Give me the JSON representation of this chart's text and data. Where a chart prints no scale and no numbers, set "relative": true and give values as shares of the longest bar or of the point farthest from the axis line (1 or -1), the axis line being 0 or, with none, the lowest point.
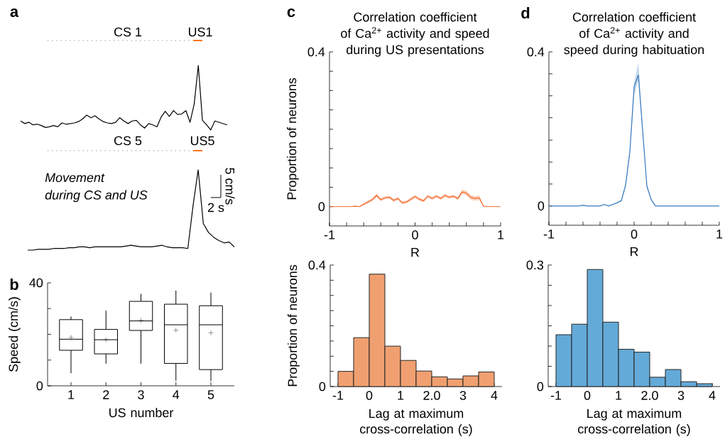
{
  "chart_data": [
    {
      "type": "line",
      "relative": true,
      "categories": [
        null,
        null,
        null,
        null,
        null,
        null,
        null,
        null,
        null,
        null,
        null,
        null,
        null,
        null,
        null,
        null,
        null,
        null,
        null,
        null,
        null,
        null,
        null,
        null,
        null,
        null,
        null,
        null,
        null,
        null,
        null,
        null,
        null,
        null,
        null,
        null,
        null,
        null,
        null,
        null,
        null,
        null,
        null,
        null,
        null,
        null,
        null,
        null,
        null,
        null,
        null
      ],
      "series": [
        {
          "color": "#000000",
          "values": [
            0.14,
            0.1,
            0.12,
            0.08,
            0.09,
            0.07,
            0.04,
            0.05,
            0.07,
            0.05,
            0.11,
            0.09,
            0.1,
            0.11,
            0.13,
            0.17,
            0.23,
            0.19,
            0.22,
            0.17,
            0.13,
            0.11,
            0.1,
            0.12,
            0.19,
            0.14,
            0.1,
            0.14,
            0.15,
            0.08,
            0.03,
            0.1,
            0.08,
            0.05,
            0.2,
            0.29,
            0.21,
            0.3,
            0.24,
            0.25,
            0.3,
            0.12,
            0.4,
            1,
            0.15,
            0.08,
            0,
            0.14,
            0.12,
            0.1,
            0.08
          ]
        }
      ],
      "annotations": [
        "a",
        "CS 1",
        "US1"
      ]
    },
    {
      "type": "line",
      "relative": true,
      "categories": [
        null,
        null,
        null,
        null,
        null,
        null,
        null,
        null,
        null,
        null,
        null,
        null,
        null,
        null,
        null,
        null,
        null,
        null,
        null,
        null,
        null,
        null,
        null,
        null,
        null,
        null,
        null,
        null,
        null,
        null,
        null,
        null,
        null,
        null,
        null,
        null,
        null,
        null,
        null,
        null,
        null
      ],
      "series": [
        {
          "color": "#000000",
          "values": [
            0,
            0,
            0.01,
            0.01,
            0.01,
            0.02,
            0.02,
            0.02,
            0.03,
            0.03,
            0.04,
            0.04,
            0.03,
            0.04,
            0.04,
            0.04,
            0.04,
            0.04,
            0.04,
            0.05,
            0.06,
            0.05,
            0.04,
            0.04,
            0.04,
            0.05,
            0.06,
            0.04,
            0.03,
            0.03,
            0.03,
            0.02,
            0.55,
            1,
            0.33,
            0.22,
            0.16,
            0.12,
            0.09,
            0.1,
            0.04
          ]
        }
      ],
      "annotations": [
        "CS 5",
        "US5",
        "Movement",
        "during CS and US",
        "5 cm/s",
        "2 s"
      ]
    },
    {
      "type": "box",
      "categories": [
        "1",
        "2",
        "3",
        "4",
        "5"
      ],
      "color": "#000000",
      "boxes": [
        {
          "low": 4.9,
          "q1": 13.8,
          "median": 18.1,
          "q3": 25.7,
          "high": 26.9,
          "mean": 18.8
        },
        {
          "low": 8.6,
          "q1": 12.4,
          "median": 17.9,
          "q3": 21.9,
          "high": 29.2,
          "mean": 17.9
        },
        {
          "low": 8.6,
          "q1": 21.5,
          "median": 25.2,
          "q3": 32.8,
          "high": 35.7,
          "mean": 25.4
        },
        {
          "low": 2.0,
          "q1": 8.7,
          "median": 23.7,
          "q3": 31.7,
          "high": 37.0,
          "mean": 21.6
        },
        {
          "low": 1.8,
          "q1": 6.3,
          "median": 23.7,
          "q3": 31.1,
          "high": 36.2,
          "mean": 20.6
        }
      ],
      "xlabel": "US number",
      "ylabel": "Speed (cm/s)",
      "ylim": [
        0,
        40
      ],
      "yticks": [
        0,
        {
          "value": 10,
          "label": null
        },
        {
          "value": 20,
          "label": null
        },
        {
          "value": 30,
          "label": null
        },
        40
      ],
      "annotations": [
        "b"
      ]
    },
    {
      "type": "line",
      "title": "Correlation coefficient",
      "subtitle": "of Ca$^{2+}$ activity and speed during US presentations",
      "xlabel": "R",
      "ylabel": "Proportion of neurons",
      "x": [
        -1,
        -0.95,
        -0.9,
        -0.85,
        -0.8,
        -0.75,
        -0.7,
        -0.65,
        -0.6,
        -0.55,
        -0.5,
        -0.45,
        -0.4,
        -0.35,
        -0.3,
        -0.25,
        -0.2,
        -0.15,
        -0.1,
        -0.05,
        0,
        0.05,
        0.1,
        0.15,
        0.2,
        0.25,
        0.3,
        0.35,
        0.4,
        0.45,
        0.5,
        0.55,
        0.6,
        0.65,
        0.7,
        0.75,
        0.8,
        0.85,
        0.9,
        0.95,
        1
      ],
      "xlim": [
        -1,
        1
      ],
      "xticks": [
        -1,
        {
          "value": -0.8,
          "label": null
        },
        {
          "value": -0.6,
          "label": null
        },
        {
          "value": -0.4,
          "label": null
        },
        {
          "value": -0.2,
          "label": null
        },
        0,
        {
          "value": 0.2,
          "label": null
        },
        {
          "value": 0.4,
          "label": null
        },
        {
          "value": 0.6,
          "label": null
        },
        {
          "value": 0.8,
          "label": null
        },
        1
      ],
      "ylim": [
        -0.05,
        0.4
      ],
      "yticks": [
        0,
        {
          "value": 0.05,
          "label": null
        },
        {
          "value": 0.1,
          "label": null
        },
        {
          "value": 0.15,
          "label": null
        },
        {
          "value": 0.2,
          "label": null
        },
        {
          "value": 0.25,
          "label": null
        },
        {
          "value": 0.3,
          "label": null
        },
        {
          "value": 0.35,
          "label": null
        },
        0.4
      ],
      "series": [
        {
          "color": "#f26a2a",
          "values": [
            0,
            0,
            0,
            0,
            0,
            0,
            0.001,
            0,
            0.006,
            0.012,
            0.018,
            0.029,
            0.018,
            0.023,
            0.024,
            0.016,
            0.021,
            0.01,
            0.012,
            0.019,
            0.026,
            0.019,
            0.015,
            0.027,
            0.021,
            0.027,
            0.021,
            0.029,
            0.024,
            0.027,
            0.021,
            0.038,
            0.035,
            0.024,
            0.021,
            0.023,
            0.001,
            0,
            0,
            0,
            0
          ],
          "upper": [
            0,
            0,
            0,
            0,
            0,
            0,
            0.002,
            0.001,
            0.009,
            0.016,
            0.022,
            0.034,
            0.022,
            0.027,
            0.028,
            0.02,
            0.025,
            0.014,
            0.016,
            0.023,
            0.03,
            0.023,
            0.019,
            0.031,
            0.025,
            0.031,
            0.025,
            0.033,
            0.028,
            0.031,
            0.025,
            0.044,
            0.041,
            0.03,
            0.027,
            0.029,
            0.002,
            0,
            0,
            0,
            0
          ],
          "lower": [
            0,
            0,
            0,
            0,
            0,
            0,
            0,
            0,
            0.003,
            0.008,
            0.014,
            0.024,
            0.014,
            0.019,
            0.02,
            0.012,
            0.017,
            0.006,
            0.008,
            0.015,
            0.022,
            0.015,
            0.011,
            0.023,
            0.017,
            0.023,
            0.017,
            0.025,
            0.02,
            0.023,
            0.017,
            0.032,
            0.029,
            0.018,
            0.015,
            0.017,
            0,
            0,
            0,
            0,
            0
          ]
        }
      ],
      "annotations": [
        "c"
      ]
    },
    {
      "type": "histogram",
      "bins": [
        -1,
        -0.5,
        0,
        0.5,
        1,
        1.5,
        2,
        2.5,
        3,
        3.5,
        4
      ],
      "values": [
        0.05,
        0.161,
        0.37,
        0.133,
        0.086,
        0.051,
        0.032,
        0.025,
        0.035,
        0.048
      ],
      "color": "#f0a070",
      "xlabel": "Lag at maximum cross-correlation (s)",
      "ylabel": "Proportion of neurons",
      "xlim": [
        -1.25,
        4.25
      ],
      "xticks": [
        -1,
        0,
        1,
        {
          "value": 2,
          "label": "2.0"
        },
        3,
        4
      ],
      "ylim": [
        0,
        0.4
      ],
      "yticks": [
        0,
        {
          "value": 0.05,
          "label": null
        },
        {
          "value": 0.1,
          "label": null
        },
        {
          "value": 0.15,
          "label": null
        },
        {
          "value": 0.2,
          "label": null
        },
        {
          "value": 0.25,
          "label": null
        },
        {
          "value": 0.3,
          "label": null
        },
        {
          "value": 0.35,
          "label": null
        },
        0.4
      ]
    },
    {
      "type": "line",
      "title": "Correlation coefficient",
      "subtitle": "of Ca$^{2+}$ activity and speed during habituation",
      "xlabel": "R",
      "x": [
        -1,
        -0.95,
        -0.9,
        -0.85,
        -0.8,
        -0.75,
        -0.7,
        -0.65,
        -0.6,
        -0.55,
        -0.5,
        -0.45,
        -0.4,
        -0.35,
        -0.3,
        -0.25,
        -0.2,
        -0.15,
        -0.1,
        -0.05,
        0,
        0.05,
        0.1,
        0.15,
        0.2,
        0.25,
        0.3,
        0.35,
        0.4,
        0.45,
        0.5,
        0.55,
        0.6,
        0.65,
        0.7,
        0.75,
        0.8,
        0.85,
        0.9,
        0.95,
        1
      ],
      "xlim": [
        -1,
        1
      ],
      "xticks": [
        -1,
        {
          "value": -0.8,
          "label": null
        },
        {
          "value": -0.6,
          "label": null
        },
        {
          "value": -0.4,
          "label": null
        },
        {
          "value": -0.2,
          "label": null
        },
        0,
        {
          "value": 0.2,
          "label": null
        },
        {
          "value": 0.4,
          "label": null
        },
        {
          "value": 0.6,
          "label": null
        },
        {
          "value": 0.8,
          "label": null
        },
        1
      ],
      "ylim": [
        -0.05,
        0.4
      ],
      "yticks": [
        0,
        {
          "value": 0.057,
          "label": null
        },
        {
          "value": 0.114,
          "label": null
        },
        {
          "value": 0.171,
          "label": null
        },
        {
          "value": 0.229,
          "label": null
        },
        {
          "value": 0.286,
          "label": null
        },
        {
          "value": 0.343,
          "label": null
        },
        0.4
      ],
      "series": [
        {
          "color": "#3a7cc0",
          "values": [
            0,
            0,
            0,
            0,
            0,
            0,
            0,
            0,
            0.002,
            0,
            0,
            0,
            0,
            0.004,
            0,
            0.004,
            0.008,
            0.014,
            0.054,
            0.141,
            0.31,
            0.34,
            0.196,
            0.051,
            0.017,
            0,
            0,
            0,
            0,
            0,
            0,
            0,
            0,
            0,
            0,
            0,
            0,
            0,
            0,
            0,
            0
          ],
          "upper": [
            0,
            0,
            0,
            0,
            0,
            0,
            0,
            0,
            0.003,
            0.001,
            0.001,
            0.001,
            0.001,
            0.005,
            0.001,
            0.005,
            0.01,
            0.017,
            0.06,
            0.149,
            0.32,
            0.372,
            0.204,
            0.056,
            0.019,
            0.001,
            0,
            0,
            0,
            0,
            0,
            0,
            0,
            0,
            0,
            0,
            0,
            0,
            0,
            0,
            0
          ],
          "lower": [
            0,
            0,
            0,
            0,
            0,
            0,
            0,
            0,
            0.001,
            0,
            0,
            0,
            0,
            0.003,
            0,
            0.003,
            0.006,
            0.011,
            0.048,
            0.133,
            0.286,
            0.326,
            0.188,
            0.046,
            0.015,
            0,
            0,
            0,
            0,
            0,
            0,
            0,
            0,
            0,
            0,
            0,
            0,
            0,
            0,
            0,
            0
          ]
        }
      ],
      "annotations": [
        "d"
      ]
    },
    {
      "type": "histogram",
      "bins": [
        -1,
        -0.5,
        0,
        0.5,
        1,
        1.5,
        2,
        2.5,
        3,
        3.5,
        4
      ],
      "values": [
        0.128,
        0.154,
        0.289,
        0.159,
        0.092,
        0.085,
        0.023,
        0.042,
        0.012,
        0.007
      ],
      "color": "#64aad8",
      "xlabel": "Lag at maximum cross-correlation (s)",
      "xlim": [
        -1.25,
        4.25
      ],
      "xticks": [
        -1,
        0,
        1,
        {
          "value": 2,
          "label": "2.0"
        },
        3,
        4
      ],
      "ylim": [
        0,
        0.3
      ],
      "yticks": [
        0,
        {
          "value": 0.05,
          "label": null
        },
        {
          "value": 0.1,
          "label": null
        },
        {
          "value": 0.15,
          "label": null
        },
        {
          "value": 0.2,
          "label": null
        },
        {
          "value": 0.25,
          "label": null
        },
        0.3
      ]
    }
  ]
}
